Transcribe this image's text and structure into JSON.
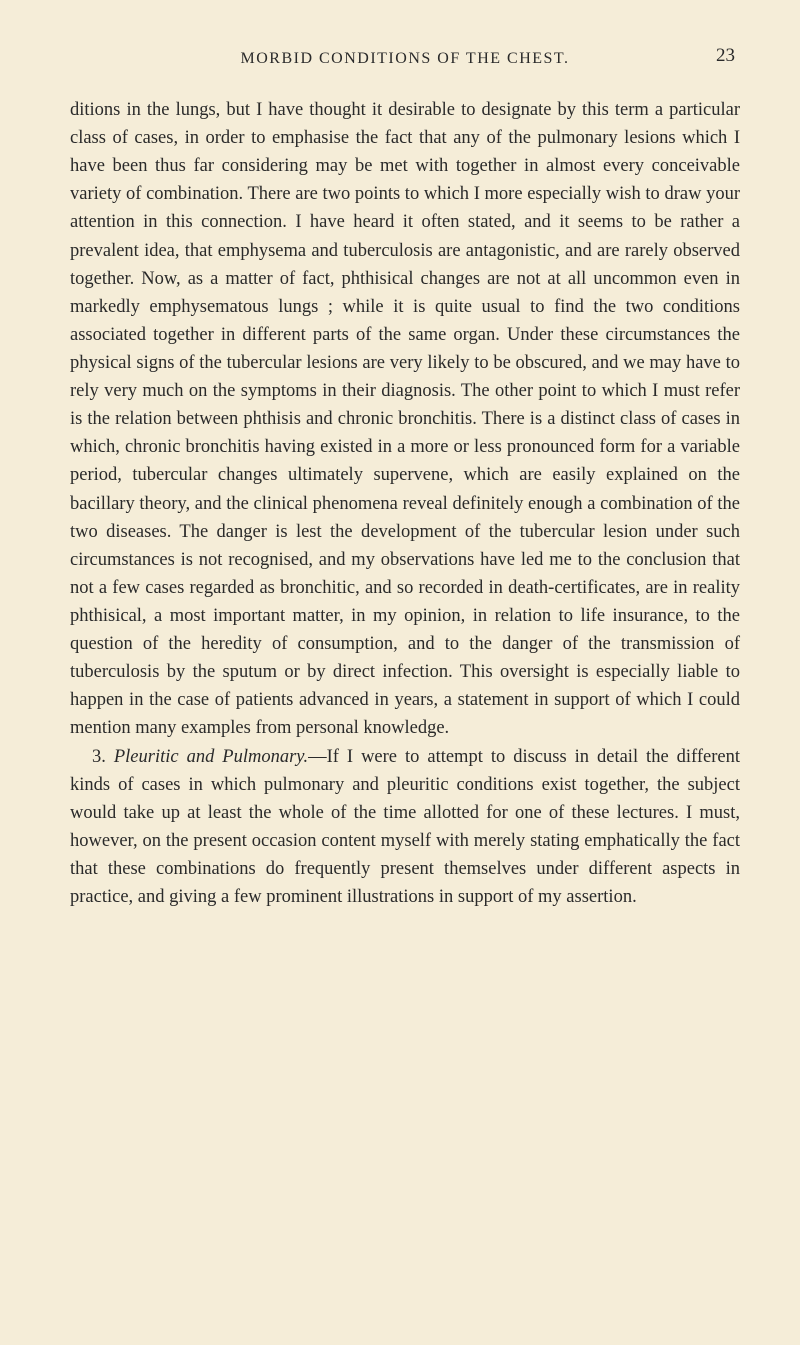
{
  "header": {
    "running_title": "MORBID CONDITIONS OF THE CHEST.",
    "page_number": "23"
  },
  "colors": {
    "background": "#f5edd8",
    "text": "#2a2a2a"
  },
  "typography": {
    "body_fontsize": 18.5,
    "body_lineheight": 1.52,
    "header_fontsize": 16,
    "pagenum_fontsize": 19
  },
  "paragraphs": {
    "p1": "ditions in the lungs, but I have thought it desirable to designate by this term a particular class of cases, in order to emphasise the fact that any of the pulmonary lesions which I have been thus far considering may be met with together in almost every conceivable variety of combination. There are two points to which I more especially wish to draw your attention in this connection. I have heard it often stated, and it seems to be rather a prevalent idea, that emphysema and tuberculosis are antagonistic, and are rarely observed together. Now, as a matter of fact, phthisical changes are not at all uncommon even in markedly emphysematous lungs ; while it is quite usual to find the two conditions associated together in different parts of the same organ. Under these circumstances the physical signs of the tubercular lesions are very likely to be obscured, and we may have to rely very much on the symptoms in their diagnosis. The other point to which I must refer is the relation between phthisis and chronic bronchitis. There is a distinct class of cases in which, chronic bronchitis having existed in a more or less pronounced form for a variable period, tubercular changes ultimately supervene, which are easily explained on the bacillary theory, and the clinical phenomena reveal definitely enough a combination of the two diseases. The danger is lest the development of the tubercular lesion under such circumstances is not recognised, and my observations have led me to the conclusion that not a few cases regarded as bronchitic, and so recorded in death-certificates, are in reality phthisical, a most important matter, in my opinion, in relation to life insurance, to the question of the heredity of consumption, and to the danger of the transmission of tuberculosis by the sputum or by direct infection. This oversight is especially liable to happen in the case of patients advanced in years, a statement in support of which I could mention many examples from personal knowledge.",
    "p2_number": "3. ",
    "p2_italic": "Pleuritic and Pulmonary.",
    "p2_rest": "—If I were to attempt to discuss in detail the different kinds of cases in which pulmonary and pleuritic conditions exist together, the subject would take up at least the whole of the time allotted for one of these lectures. I must, however, on the present occasion content myself with merely stating emphatically the fact that these combinations do frequently present themselves under different aspects in practice, and giving a few prominent illustrations in support of my assertion."
  }
}
